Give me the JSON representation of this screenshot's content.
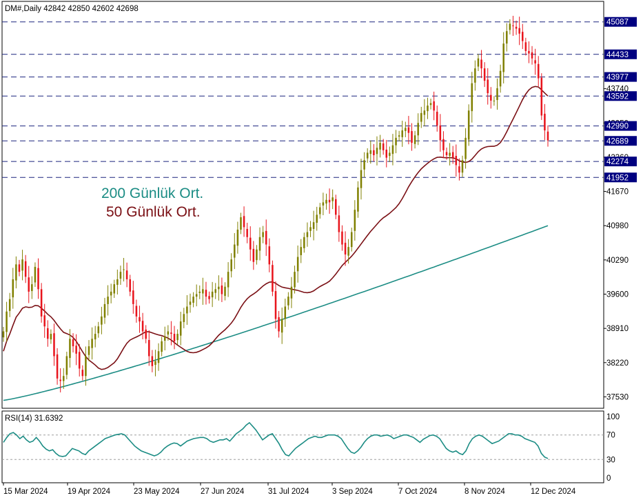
{
  "window": {
    "title": "DM#,Daily  42842 42850 42602 42698"
  },
  "rsi_panel": {
    "title": "RSI(14) 31.6392"
  },
  "colors": {
    "bull": "#808000",
    "bear": "#e8141c",
    "ma50": "#7a0f14",
    "ma200": "#1b8c84",
    "rsi": "#1b8c84",
    "level_line": "#1a237e",
    "badge_bg": "#000080",
    "grid_border": "#000000"
  },
  "chart_data": [
    {
      "type": "candlestick",
      "symbol": "DM#",
      "timeframe": "Daily",
      "last_bar": {
        "open": 42842,
        "high": 42850,
        "low": 42602,
        "close": 42698
      },
      "ylim": [
        37300,
        45500
      ],
      "yticks": [
        37530,
        38220,
        38910,
        39600,
        40290,
        40980,
        41670,
        42360,
        43050,
        43740
      ],
      "x_labels": [
        "15 Mar 2024",
        "19 Apr 2024",
        "23 May 2024",
        "27 Jun 2024",
        "31 Jul 2024",
        "3 Sep 2024",
        "7 Oct 2024",
        "8 Nov 2024",
        "12 Dec 2024"
      ],
      "price_levels": [
        45087,
        44433,
        43977,
        43592,
        42990,
        42689,
        42274,
        41952
      ],
      "legend": [
        "200 Günlük Ort.",
        "50 Günlük Ort."
      ],
      "closes": [
        38850,
        39250,
        39500,
        39900,
        40200,
        40050,
        40300,
        39950,
        39650,
        39800,
        40150,
        39700,
        39150,
        38950,
        38700,
        38800,
        38350,
        37900,
        37850,
        37950,
        38350,
        38700,
        38550,
        38400,
        38100,
        37950,
        38350,
        38550,
        38700,
        38800,
        38950,
        39150,
        39400,
        39550,
        39650,
        39800,
        39900,
        40050,
        40100,
        39900,
        39650,
        39400,
        39150,
        39050,
        38850,
        38700,
        38350,
        38150,
        38250,
        38450,
        38650,
        38750,
        38850,
        38800,
        38650,
        38800,
        39050,
        39200,
        39350,
        39450,
        39550,
        39600,
        39650,
        39700,
        39550,
        39500,
        39650,
        39700,
        39750,
        39600,
        39750,
        40050,
        40300,
        40600,
        40900,
        41150,
        40950,
        40750,
        40500,
        40250,
        40500,
        40750,
        40850,
        40600,
        40200,
        39650,
        39100,
        38850,
        39100,
        39350,
        39550,
        39750,
        40050,
        40350,
        40550,
        40750,
        40850,
        40950,
        41050,
        41200,
        41350,
        41450,
        41500,
        41450,
        41550,
        41200,
        40850,
        40600,
        40400,
        40550,
        40850,
        41300,
        41750,
        42100,
        42300,
        42450,
        42500,
        42400,
        42550,
        42650,
        42500,
        42350,
        42450,
        42600,
        42750,
        42800,
        42900,
        42950,
        42850,
        42650,
        42800,
        43050,
        43250,
        43300,
        43400,
        43450,
        43300,
        43000,
        42700,
        42500,
        42400,
        42450,
        42350,
        42200,
        42050,
        42300,
        42750,
        43300,
        43850,
        44150,
        44350,
        44150,
        43900,
        43650,
        43500,
        43500,
        43750,
        44100,
        44650,
        44900,
        45050,
        45000,
        44950,
        44850,
        44700,
        44500,
        44450,
        44350,
        44250,
        43950,
        43200,
        42900,
        42698
      ],
      "ma50_start": 38450,
      "ma50_end": 43592,
      "ma200_start": 37460,
      "ma200_end": 40980
    },
    {
      "type": "line",
      "name": "RSI(14)",
      "last_value": 31.6392,
      "ylim": [
        0,
        100
      ],
      "yticks": [
        0,
        30,
        70,
        100
      ],
      "reference_levels": [
        30,
        70
      ],
      "values": [
        58,
        66,
        72,
        74,
        70,
        64,
        68,
        62,
        58,
        60,
        66,
        60,
        52,
        47,
        44,
        46,
        40,
        36,
        35,
        36,
        42,
        48,
        46,
        44,
        40,
        38,
        44,
        48,
        52,
        56,
        60,
        64,
        66,
        68,
        70,
        71,
        72,
        70,
        64,
        58,
        52,
        48,
        44,
        42,
        40,
        38,
        36,
        38,
        42,
        48,
        52,
        55,
        57,
        56,
        52,
        56,
        60,
        62,
        64,
        65,
        66,
        66,
        64,
        60,
        58,
        60,
        62,
        62,
        64,
        60,
        66,
        72,
        76,
        80,
        86,
        90,
        84,
        78,
        70,
        62,
        66,
        70,
        72,
        64,
        56,
        46,
        38,
        36,
        42,
        48,
        52,
        56,
        60,
        64,
        66,
        68,
        66,
        66,
        68,
        70,
        70,
        70,
        68,
        64,
        56,
        48,
        42,
        40,
        44,
        50,
        58,
        64,
        68,
        70,
        70,
        68,
        69,
        70,
        68,
        64,
        66,
        68,
        70,
        70,
        68,
        66,
        62,
        58,
        63,
        66,
        69,
        70,
        68,
        64,
        56,
        48,
        44,
        42,
        44,
        40,
        38,
        44,
        56,
        64,
        68,
        70,
        68,
        64,
        60,
        56,
        58,
        60,
        64,
        68,
        72,
        72,
        70,
        70,
        68,
        64,
        62,
        60,
        58,
        52,
        40,
        34,
        31.6392
      ]
    }
  ]
}
